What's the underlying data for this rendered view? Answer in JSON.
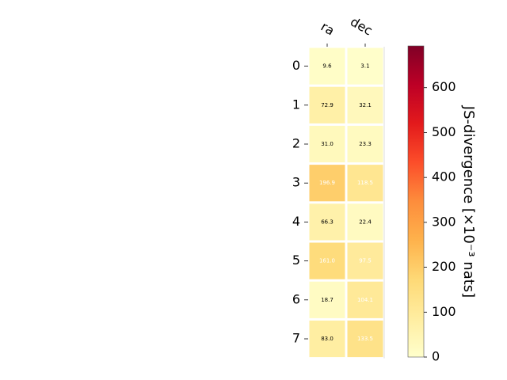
{
  "chart_data": {
    "type": "heatmap",
    "columns": [
      "ra",
      "dec"
    ],
    "rows": [
      "0",
      "1",
      "2",
      "3",
      "4",
      "5",
      "6",
      "7"
    ],
    "values": [
      [
        9.6,
        3.1
      ],
      [
        72.9,
        32.1
      ],
      [
        31.0,
        23.3
      ],
      [
        196.9,
        118.5
      ],
      [
        66.3,
        22.4
      ],
      [
        161.0,
        97.5
      ],
      [
        18.7,
        104.1
      ],
      [
        83.0,
        133.5
      ]
    ],
    "value_labels": [
      [
        "9.6",
        "3.1"
      ],
      [
        "72.9",
        "32.1"
      ],
      [
        "31.0",
        "23.3"
      ],
      [
        "196.9",
        "118.5"
      ],
      [
        "66.3",
        "22.4"
      ],
      [
        "161.0",
        "97.5"
      ],
      [
        "18.7",
        "104.1"
      ],
      [
        "83.0",
        "133.5"
      ]
    ],
    "colorbar": {
      "label": "JS-divergence [×10⁻³ nats]",
      "ticks": [
        "0",
        "100",
        "200",
        "300",
        "400",
        "500",
        "600"
      ],
      "tick_values": [
        0,
        100,
        200,
        300,
        400,
        500,
        600
      ],
      "range": [
        0,
        693
      ],
      "colormap": "YlOrRd"
    }
  }
}
